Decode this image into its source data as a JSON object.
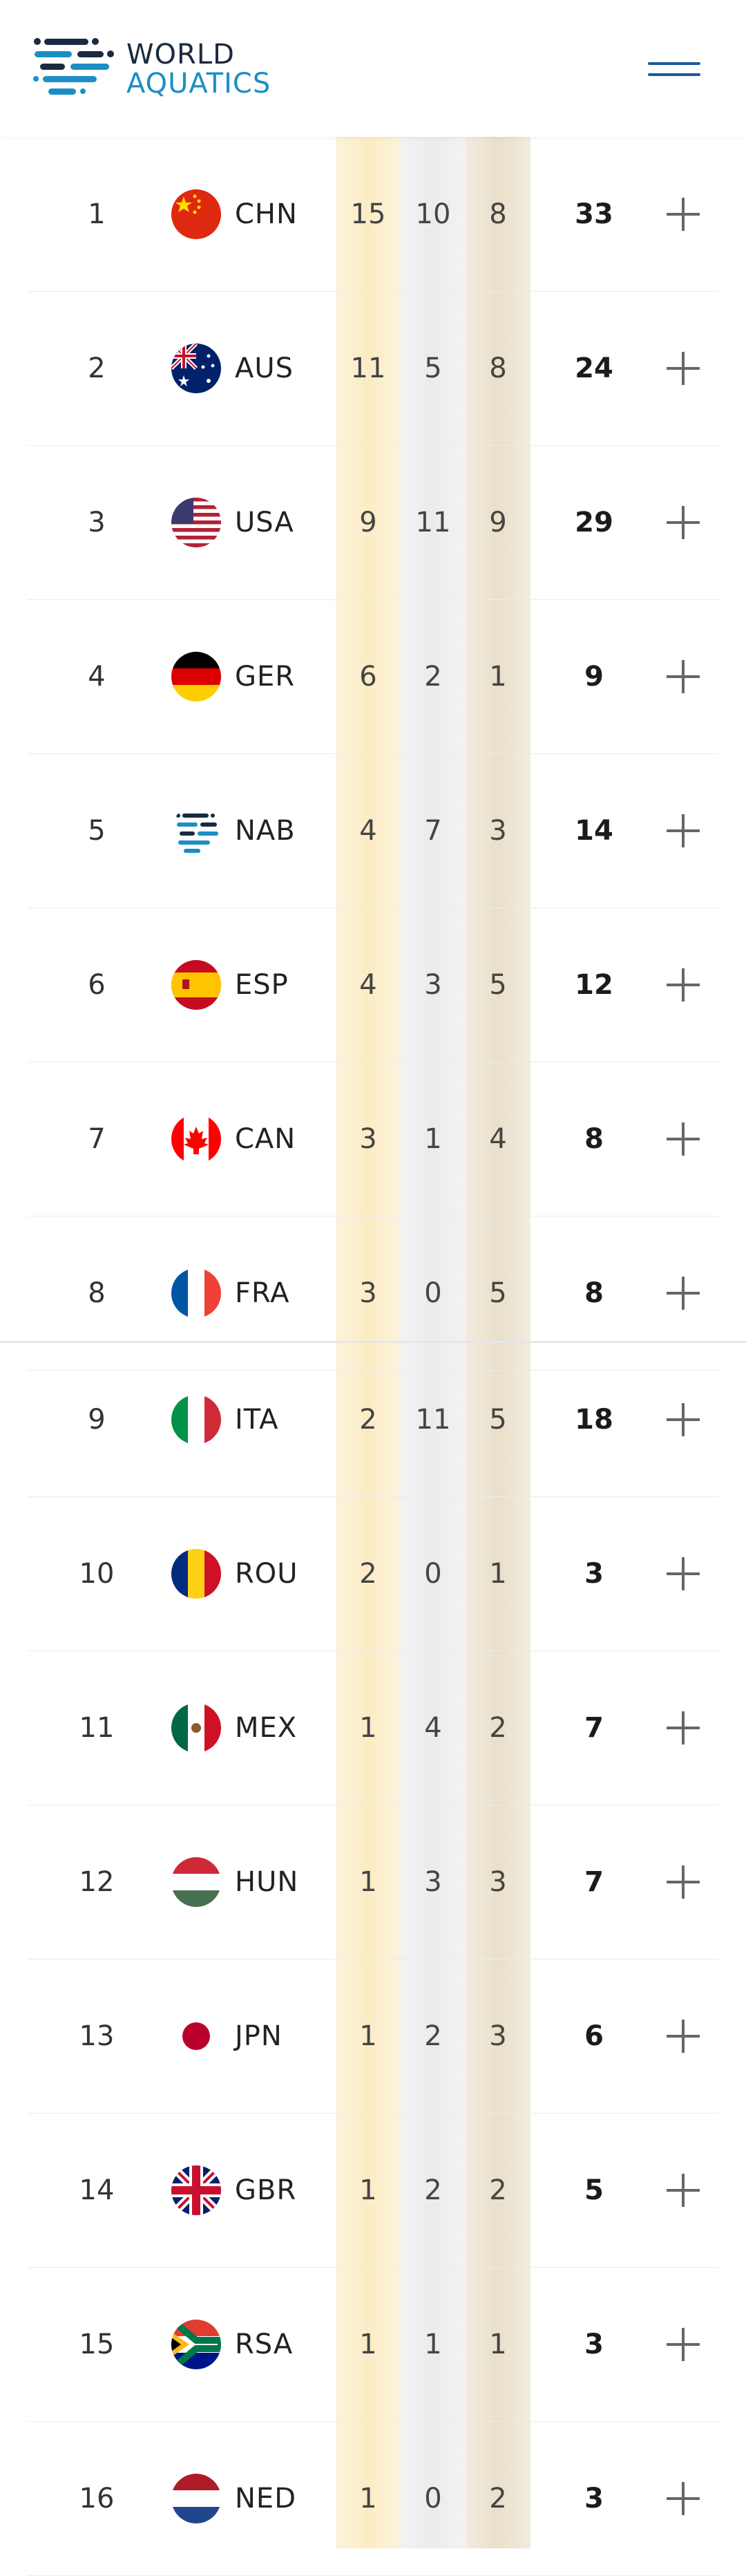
{
  "brand": {
    "line1": "WORLD",
    "line2": "AQUATICS"
  },
  "rows": [
    {
      "rank": "1",
      "code": "CHN",
      "gold": "15",
      "silver": "10",
      "bronze": "8",
      "total": "33",
      "flag": "chn"
    },
    {
      "rank": "2",
      "code": "AUS",
      "gold": "11",
      "silver": "5",
      "bronze": "8",
      "total": "24",
      "flag": "aus"
    },
    {
      "rank": "3",
      "code": "USA",
      "gold": "9",
      "silver": "11",
      "bronze": "9",
      "total": "29",
      "flag": "usa"
    },
    {
      "rank": "4",
      "code": "GER",
      "gold": "6",
      "silver": "2",
      "bronze": "1",
      "total": "9",
      "flag": "ger"
    },
    {
      "rank": "5",
      "code": "NAB",
      "gold": "4",
      "silver": "7",
      "bronze": "3",
      "total": "14",
      "flag": "nab"
    },
    {
      "rank": "6",
      "code": "ESP",
      "gold": "4",
      "silver": "3",
      "bronze": "5",
      "total": "12",
      "flag": "esp"
    },
    {
      "rank": "7",
      "code": "CAN",
      "gold": "3",
      "silver": "1",
      "bronze": "4",
      "total": "8",
      "flag": "can"
    },
    {
      "rank": "8",
      "code": "FRA",
      "gold": "3",
      "silver": "0",
      "bronze": "5",
      "total": "8",
      "flag": "fra"
    },
    {
      "rank": "9",
      "code": "ITA",
      "gold": "2",
      "silver": "11",
      "bronze": "5",
      "total": "18",
      "flag": "ita"
    },
    {
      "rank": "10",
      "code": "ROU",
      "gold": "2",
      "silver": "0",
      "bronze": "1",
      "total": "3",
      "flag": "rou"
    },
    {
      "rank": "11",
      "code": "MEX",
      "gold": "1",
      "silver": "4",
      "bronze": "2",
      "total": "7",
      "flag": "mex"
    },
    {
      "rank": "12",
      "code": "HUN",
      "gold": "1",
      "silver": "3",
      "bronze": "3",
      "total": "7",
      "flag": "hun"
    },
    {
      "rank": "13",
      "code": "JPN",
      "gold": "1",
      "silver": "2",
      "bronze": "3",
      "total": "6",
      "flag": "jpn"
    },
    {
      "rank": "14",
      "code": "GBR",
      "gold": "1",
      "silver": "2",
      "bronze": "2",
      "total": "5",
      "flag": "gbr"
    },
    {
      "rank": "15",
      "code": "RSA",
      "gold": "1",
      "silver": "1",
      "bronze": "1",
      "total": "3",
      "flag": "rsa"
    },
    {
      "rank": "16",
      "code": "NED",
      "gold": "1",
      "silver": "0",
      "bronze": "2",
      "total": "3",
      "flag": "ned"
    }
  ],
  "icons": {
    "menu": "hamburger-icon",
    "expand": "plus-icon"
  },
  "colors": {
    "brand_dark": "#1a2a40",
    "brand_blue": "#1c8ec5",
    "gold_col": "#fcecc4",
    "silver_col": "#ebebeb",
    "bronze_col": "#e9dfca"
  }
}
